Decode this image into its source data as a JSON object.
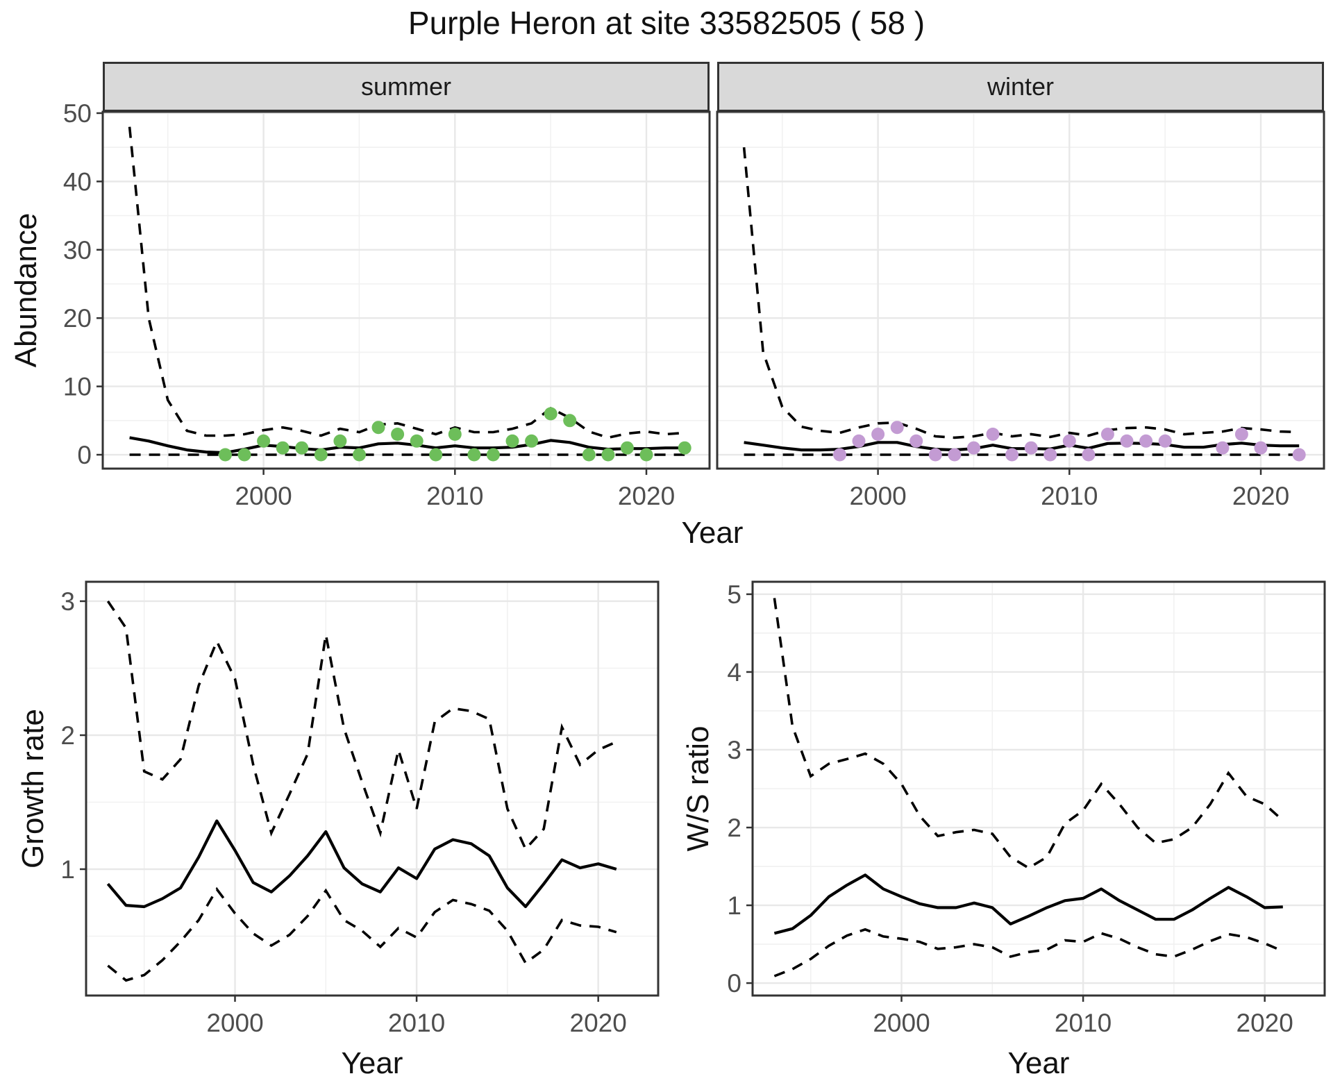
{
  "title": "Purple Heron at site 33582505 ( 58 )",
  "facets": {
    "summer": "summer",
    "winter": "winter"
  },
  "axis_titles": {
    "abundance": "Abundance",
    "year": "Year",
    "growth_rate": "Growth rate",
    "ws_ratio": "W/S ratio"
  },
  "colors": {
    "summer_point": "#6DBE5A",
    "winter_point": "#C39BD3",
    "line": "#000000",
    "strip_bg": "#D9D9D9",
    "panel_border": "#333333",
    "grid_major": "#E8E8E8",
    "grid_minor": "#F1F1F1",
    "tick_label": "#4D4D4D"
  },
  "chart_data": [
    {
      "id": "abundance-summer",
      "type": "line+scatter",
      "facet_label": "summer",
      "ylabel": "Abundance",
      "xlabel": "Year",
      "xlim": [
        1991.6,
        2023.3
      ],
      "ylim": [
        -2.03,
        50.2
      ],
      "xticks": [
        2000,
        2010,
        2020
      ],
      "xtick_labels": [
        "2000",
        "2010",
        "2020"
      ],
      "xticks_minor": [
        1995,
        2005,
        2015
      ],
      "yticks": [
        0,
        10,
        20,
        30,
        40,
        50
      ],
      "ytick_labels": [
        "0",
        "10",
        "20",
        "30",
        "40",
        "50"
      ],
      "yticks_minor": [
        5,
        15,
        25,
        35,
        45
      ],
      "show_y_labels": true,
      "years": [
        1993,
        1994,
        1995,
        1996,
        1997,
        1998,
        1999,
        2000,
        2001,
        2002,
        2003,
        2004,
        2005,
        2006,
        2007,
        2008,
        2009,
        2010,
        2011,
        2012,
        2013,
        2014,
        2015,
        2016,
        2017,
        2018,
        2019,
        2020,
        2021,
        2022
      ],
      "fit": [
        2.5,
        2.0,
        1.3,
        0.7,
        0.4,
        0.3,
        0.8,
        1.4,
        1.2,
        0.9,
        0.7,
        1.1,
        1.0,
        1.6,
        1.7,
        1.4,
        1.0,
        1.3,
        1.0,
        1.0,
        1.1,
        1.5,
        2.1,
        1.8,
        1.1,
        0.8,
        0.9,
        0.9,
        1.0,
        1.0
      ],
      "upper": [
        48,
        20,
        8,
        3.5,
        2.8,
        2.8,
        3.0,
        3.6,
        4.0,
        3.5,
        2.8,
        3.8,
        3.3,
        4.4,
        4.6,
        3.8,
        3.0,
        4.0,
        3.3,
        3.3,
        3.8,
        4.6,
        6.8,
        5.4,
        3.4,
        2.5,
        3.1,
        3.4,
        3.0,
        3.2
      ],
      "lower": [
        0,
        0,
        0,
        0,
        0,
        0,
        0,
        0,
        0,
        0,
        0,
        0,
        0,
        0,
        0,
        0,
        0,
        0,
        0,
        0,
        0,
        0,
        0,
        0,
        0,
        0,
        0,
        0,
        0,
        0
      ],
      "points": {
        "color": "#6DBE5A",
        "years": [
          1998,
          1999,
          2000,
          2001,
          2002,
          2003,
          2004,
          2005,
          2006,
          2007,
          2008,
          2009,
          2010,
          2011,
          2012,
          2013,
          2014,
          2015,
          2016,
          2017,
          2018,
          2019,
          2020,
          2022
        ],
        "values": [
          0,
          0,
          2,
          1,
          1,
          0,
          2,
          0,
          4,
          3,
          2,
          0,
          3,
          0,
          0,
          2,
          2,
          6,
          5,
          0,
          0,
          1,
          0,
          1
        ]
      }
    },
    {
      "id": "abundance-winter",
      "type": "line+scatter",
      "facet_label": "winter",
      "ylabel": "Abundance",
      "xlabel": "Year",
      "xlim": [
        1991.6,
        2023.3
      ],
      "ylim": [
        -2.03,
        50.2
      ],
      "xticks": [
        2000,
        2010,
        2020
      ],
      "xtick_labels": [
        "2000",
        "2010",
        "2020"
      ],
      "xticks_minor": [
        1995,
        2005,
        2015
      ],
      "yticks": [
        0,
        10,
        20,
        30,
        40,
        50
      ],
      "ytick_labels": [
        "0",
        "10",
        "20",
        "30",
        "40",
        "50"
      ],
      "yticks_minor": [
        5,
        15,
        25,
        35,
        45
      ],
      "show_y_labels": false,
      "years": [
        1993,
        1994,
        1995,
        1996,
        1997,
        1998,
        1999,
        2000,
        2001,
        2002,
        2003,
        2004,
        2005,
        2006,
        2007,
        2008,
        2009,
        2010,
        2011,
        2012,
        2013,
        2014,
        2015,
        2016,
        2017,
        2018,
        2019,
        2020,
        2021,
        2022
      ],
      "fit": [
        1.8,
        1.4,
        1.0,
        0.7,
        0.7,
        0.8,
        1.2,
        1.8,
        1.8,
        1.2,
        0.8,
        0.7,
        0.9,
        1.4,
        0.9,
        0.9,
        0.85,
        1.4,
        0.95,
        1.65,
        1.7,
        1.65,
        1.5,
        1.1,
        1.1,
        1.5,
        1.7,
        1.4,
        1.3,
        1.3
      ],
      "upper": [
        45,
        15,
        7,
        4.1,
        3.5,
        3.2,
        4.0,
        4.6,
        4.7,
        3.8,
        2.7,
        2.5,
        2.7,
        3.2,
        2.7,
        3.0,
        2.6,
        3.2,
        2.8,
        3.6,
        3.9,
        4.0,
        3.7,
        3.0,
        3.2,
        3.4,
        3.9,
        3.7,
        3.4,
        3.3
      ],
      "lower": [
        0,
        0,
        0,
        0,
        0,
        0,
        0,
        0,
        0,
        0,
        0,
        0,
        0,
        0,
        0,
        0,
        0,
        0,
        0,
        0,
        0,
        0,
        0,
        0,
        0,
        0,
        0,
        0,
        0,
        0
      ],
      "points": {
        "color": "#C39BD3",
        "years": [
          1998,
          1999,
          2000,
          2001,
          2002,
          2003,
          2004,
          2005,
          2006,
          2007,
          2008,
          2009,
          2010,
          2011,
          2012,
          2013,
          2014,
          2015,
          2018,
          2019,
          2020,
          2022
        ],
        "values": [
          0,
          2,
          3,
          4,
          2,
          0,
          0,
          1,
          3,
          0,
          1,
          0,
          2,
          0,
          3,
          2,
          2,
          2,
          1,
          3,
          1,
          0
        ]
      }
    },
    {
      "id": "growth-rate",
      "type": "line",
      "ylabel": "Growth rate",
      "xlabel": "Year",
      "xlim": [
        1991.8,
        2023.3
      ],
      "ylim": [
        0.057,
        3.145
      ],
      "xticks": [
        2000,
        2010,
        2020
      ],
      "xtick_labels": [
        "2000",
        "2010",
        "2020"
      ],
      "xticks_minor": [
        1995,
        2005,
        2015
      ],
      "yticks": [
        1,
        2,
        3
      ],
      "ytick_labels": [
        "1",
        "2",
        "3"
      ],
      "yticks_minor": [
        0.5,
        1.5,
        2.5
      ],
      "show_y_labels": true,
      "years": [
        1993,
        1994,
        1995,
        1996,
        1997,
        1998,
        1999,
        2000,
        2001,
        2002,
        2003,
        2004,
        2005,
        2006,
        2007,
        2008,
        2009,
        2010,
        2011,
        2012,
        2013,
        2014,
        2015,
        2016,
        2017,
        2018,
        2019,
        2020,
        2021
      ],
      "fit": [
        0.89,
        0.73,
        0.72,
        0.78,
        0.86,
        1.09,
        1.36,
        1.14,
        0.9,
        0.83,
        0.95,
        1.1,
        1.28,
        1.01,
        0.89,
        0.83,
        1.01,
        0.93,
        1.15,
        1.22,
        1.19,
        1.1,
        0.86,
        0.72,
        0.89,
        1.07,
        1.01,
        1.04,
        1.0
      ],
      "upper": [
        3.0,
        2.8,
        1.73,
        1.67,
        1.82,
        2.37,
        2.7,
        2.42,
        1.78,
        1.27,
        1.56,
        1.86,
        2.75,
        2.05,
        1.65,
        1.27,
        1.89,
        1.45,
        2.1,
        2.2,
        2.18,
        2.12,
        1.45,
        1.15,
        1.3,
        2.06,
        1.78,
        1.89,
        1.95
      ],
      "lower": [
        0.28,
        0.17,
        0.21,
        0.32,
        0.46,
        0.62,
        0.85,
        0.67,
        0.52,
        0.43,
        0.51,
        0.65,
        0.84,
        0.62,
        0.54,
        0.42,
        0.56,
        0.49,
        0.68,
        0.77,
        0.74,
        0.69,
        0.54,
        0.3,
        0.4,
        0.62,
        0.58,
        0.57,
        0.53
      ]
    },
    {
      "id": "ws-ratio",
      "type": "line",
      "ylabel": "W/S ratio",
      "xlabel": "Year",
      "xlim": [
        1991.8,
        2023.3
      ],
      "ylim": [
        -0.16,
        5.16
      ],
      "xticks": [
        2000,
        2010,
        2020
      ],
      "xtick_labels": [
        "2000",
        "2010",
        "2020"
      ],
      "xticks_minor": [
        1995,
        2005,
        2015
      ],
      "yticks": [
        0,
        1,
        2,
        3,
        4,
        5
      ],
      "ytick_labels": [
        "0",
        "1",
        "2",
        "3",
        "4",
        "5"
      ],
      "yticks_minor": [
        0.5,
        1.5,
        2.5,
        3.5,
        4.5
      ],
      "show_y_labels": true,
      "years": [
        1993,
        1994,
        1995,
        1996,
        1997,
        1998,
        1999,
        2000,
        2001,
        2002,
        2003,
        2004,
        2005,
        2006,
        2007,
        2008,
        2009,
        2010,
        2011,
        2012,
        2013,
        2014,
        2015,
        2016,
        2017,
        2018,
        2019,
        2020,
        2021
      ],
      "fit": [
        0.64,
        0.7,
        0.87,
        1.11,
        1.26,
        1.39,
        1.21,
        1.11,
        1.02,
        0.97,
        0.97,
        1.03,
        0.97,
        0.76,
        0.86,
        0.97,
        1.06,
        1.09,
        1.21,
        1.06,
        0.94,
        0.82,
        0.82,
        0.94,
        1.09,
        1.23,
        1.11,
        0.97,
        0.98
      ],
      "upper": [
        4.95,
        3.3,
        2.66,
        2.82,
        2.88,
        2.95,
        2.82,
        2.56,
        2.15,
        1.89,
        1.94,
        1.97,
        1.92,
        1.62,
        1.48,
        1.62,
        2.05,
        2.22,
        2.56,
        2.3,
        2.0,
        1.8,
        1.85,
        2.0,
        2.3,
        2.7,
        2.4,
        2.3,
        2.09
      ],
      "lower": [
        0.09,
        0.18,
        0.31,
        0.48,
        0.61,
        0.69,
        0.6,
        0.57,
        0.53,
        0.44,
        0.46,
        0.5,
        0.46,
        0.34,
        0.4,
        0.43,
        0.55,
        0.53,
        0.64,
        0.57,
        0.46,
        0.37,
        0.34,
        0.43,
        0.54,
        0.63,
        0.59,
        0.51,
        0.41
      ]
    }
  ]
}
